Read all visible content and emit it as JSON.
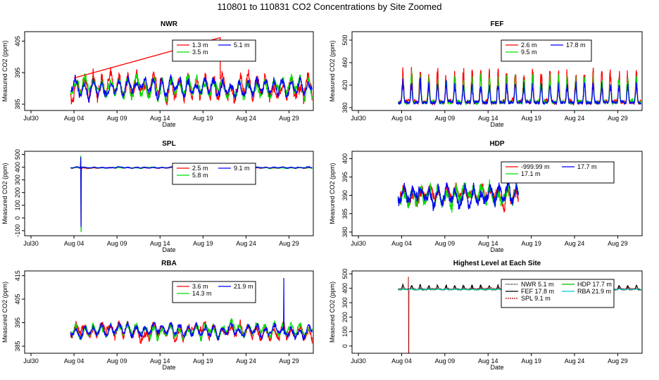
{
  "figure_title": "110801  to  110831 CO2 Concentrations by Site Zoomed",
  "chart_data": [
    {
      "type": "line",
      "title": "NWR",
      "xlabel": "Date",
      "ylabel": "Measured CO2 (ppm)",
      "x_ticks": [
        "Jul30",
        "Aug 04",
        "Aug 09",
        "Aug 14",
        "Aug 19",
        "Aug 24",
        "Aug 29"
      ],
      "x_range_days": [
        0,
        34
      ],
      "y_ticks": [
        "385",
        "395",
        "405"
      ],
      "ylim": [
        383,
        408
      ],
      "series": [
        {
          "name": "1.3 m",
          "legend_label": "1.3 m",
          "color": "#ff0000",
          "range": [
            383.5,
            404
          ],
          "base": 390.2,
          "amp": 3.2,
          "noise": 1.7
        },
        {
          "name": "3.5 m",
          "legend_label": "3.5 m",
          "color": "#00dd00",
          "range": [
            384,
            403
          ],
          "base": 390.6,
          "amp": 2.6,
          "noise": 1.4
        },
        {
          "name": "5.1 m",
          "legend_label": "5.1 m",
          "color": "#0000ff",
          "range": [
            384,
            400
          ],
          "base": 390.4,
          "amp": 2.3,
          "noise": 1.3
        }
      ],
      "annotations": [
        {
          "type": "line",
          "color": "#ff0000",
          "points": [
            [
              5,
              393.3
            ],
            [
              22,
              406.1
            ],
            [
              22,
              393
            ]
          ]
        }
      ]
    },
    {
      "type": "line",
      "title": "FEF",
      "xlabel": "Date",
      "ylabel": "Measured CO2 (ppm)",
      "x_ticks": [
        "Jul30",
        "Aug 04",
        "Aug 09",
        "Aug 14",
        "Aug 19",
        "Aug 24",
        "Aug 29"
      ],
      "x_range_days": [
        0,
        34
      ],
      "y_ticks": [
        "380",
        "420",
        "460",
        "500"
      ],
      "ylim": [
        375,
        515
      ],
      "series": [
        {
          "name": "2.6 m",
          "legend_label": "2.6 m",
          "color": "#ff0000",
          "range": [
            381,
            510
          ],
          "base": 388,
          "amp": 60,
          "noise": 6,
          "shape": "diurnal"
        },
        {
          "name": "9.5 m",
          "legend_label": "9.5 m",
          "color": "#00dd00",
          "range": [
            381,
            480
          ],
          "base": 388,
          "amp": 46,
          "noise": 5,
          "shape": "diurnal"
        },
        {
          "name": "17.8 m",
          "legend_label": "17.8 m",
          "color": "#0000ff",
          "range": [
            381,
            460
          ],
          "base": 388,
          "amp": 34,
          "noise": 4,
          "shape": "diurnal"
        }
      ]
    },
    {
      "type": "line",
      "title": "SPL",
      "xlabel": "Date",
      "ylabel": "Measured CO2 (ppm)",
      "x_ticks": [
        "Jul30",
        "Aug 04",
        "Aug 09",
        "Aug 14",
        "Aug 19",
        "Aug 24",
        "Aug 29"
      ],
      "x_range_days": [
        0,
        34
      ],
      "y_ticks": [
        "-100",
        "0",
        "100",
        "200",
        "300",
        "400",
        "500"
      ],
      "ylim": [
        -140,
        525
      ],
      "series": [
        {
          "name": "2.5 m",
          "legend_label": "2.5 m",
          "color": "#ff0000",
          "range": [
            -110,
            480
          ],
          "base": 395,
          "amp": 3,
          "noise": 3,
          "spike": [
            5.8,
            490,
            -110
          ]
        },
        {
          "name": "5.8 m",
          "legend_label": "5.8 m",
          "color": "#00dd00",
          "range": [
            -110,
            490
          ],
          "base": 396,
          "amp": 3,
          "noise": 3,
          "spike": [
            5.8,
            495,
            -110
          ]
        },
        {
          "name": "9.1 m",
          "legend_label": "9.1 m",
          "color": "#0000ff",
          "range": [
            -110,
            480
          ],
          "base": 397,
          "amp": 3,
          "noise": 3,
          "spike": [
            5.8,
            480,
            -70
          ]
        }
      ]
    },
    {
      "type": "line",
      "title": "HDP",
      "xlabel": "Date",
      "ylabel": "Measured CO2 (ppm)",
      "x_ticks": [
        "Jul30",
        "Aug 04",
        "Aug 09",
        "Aug 14",
        "Aug 19",
        "Aug 24",
        "Aug 29"
      ],
      "x_range_days": [
        0,
        34
      ],
      "y_ticks": [
        "380",
        "385",
        "390",
        "395",
        "400"
      ],
      "ylim": [
        379,
        402
      ],
      "series": [
        {
          "name": "-999.99 m",
          "legend_label": "-999.99 m",
          "color": "#ff0000",
          "range": [
            380,
            401
          ],
          "base": 390,
          "amp": 2,
          "noise": 1.2,
          "x_end": 18.5
        },
        {
          "name": "17.1 m",
          "legend_label": "17.1 m",
          "color": "#00dd00",
          "range": [
            380,
            401
          ],
          "base": 390,
          "amp": 2.2,
          "noise": 1.3,
          "x_end": 18.5
        },
        {
          "name": "17.7 m",
          "legend_label": "17.7 m",
          "color": "#0000ff",
          "range": [
            381,
            400
          ],
          "base": 390,
          "amp": 2,
          "noise": 1.1,
          "x_end": 18.5
        }
      ]
    },
    {
      "type": "line",
      "title": "RBA",
      "xlabel": "Date",
      "ylabel": "Measured CO2 (ppm)",
      "x_ticks": [
        "Jul30",
        "Aug 04",
        "Aug 09",
        "Aug 14",
        "Aug 19",
        "Aug 24",
        "Aug 29"
      ],
      "x_range_days": [
        0,
        34
      ],
      "y_ticks": [
        "385",
        "395",
        "405",
        "415"
      ],
      "ylim": [
        382,
        417
      ],
      "series": [
        {
          "name": "3.6 m",
          "legend_label": "3.6 m",
          "color": "#ff0000",
          "range": [
            383,
            402
          ],
          "base": 391.5,
          "amp": 2.5,
          "noise": 1.6
        },
        {
          "name": "14.3 m",
          "legend_label": "14.3 m",
          "color": "#00dd00",
          "range": [
            384,
            400
          ],
          "base": 391.6,
          "amp": 2.2,
          "noise": 1.3
        },
        {
          "name": "21.9 m",
          "legend_label": "21.9 m",
          "color": "#0000ff",
          "range": [
            384,
            414
          ],
          "base": 391.5,
          "amp": 2.1,
          "noise": 1.2,
          "spike": [
            29.4,
            414,
            390
          ]
        }
      ]
    },
    {
      "type": "line",
      "title": "Highest Level at Each Site",
      "xlabel": "Date",
      "ylabel": "Measured CO2 (ppm)",
      "x_ticks": [
        "Jul30",
        "Aug 04",
        "Aug 09",
        "Aug 14",
        "Aug 19",
        "Aug 24",
        "Aug 29"
      ],
      "x_range_days": [
        0,
        34
      ],
      "y_ticks": [
        "0",
        "100",
        "200",
        "300",
        "400",
        "500"
      ],
      "ylim": [
        -50,
        520
      ],
      "series": [
        {
          "name": "NWR",
          "legend_label": "NWR   5.1 m",
          "color": "#000000",
          "dash": "1,1",
          "range": [
            384,
            400
          ],
          "base": 393,
          "amp": 2,
          "noise": 1.2
        },
        {
          "name": "FEF",
          "legend_label": "FEF   17.8 m",
          "color": "#000000",
          "range": [
            381,
            470
          ],
          "base": 390,
          "amp": 30,
          "noise": 4,
          "shape": "diurnal"
        },
        {
          "name": "SPL",
          "legend_label": "SPL   9.1 m",
          "color": "#aa0000",
          "dash": "2,1",
          "range": [
            -70,
            480
          ],
          "base": 397,
          "amp": 3,
          "noise": 3,
          "spike": [
            5.8,
            480,
            -50
          ]
        },
        {
          "name": "HDP",
          "legend_label": "HDP   17.7 m",
          "color": "#00bb00",
          "range": [
            380,
            402
          ],
          "base": 392,
          "amp": 2,
          "noise": 1,
          "x_end": 18.5
        },
        {
          "name": "RBA",
          "legend_label": "RBA   21.9 m",
          "color": "#00cccc",
          "range": [
            384,
            414
          ],
          "base": 393,
          "amp": 2,
          "noise": 1.2
        }
      ]
    }
  ]
}
